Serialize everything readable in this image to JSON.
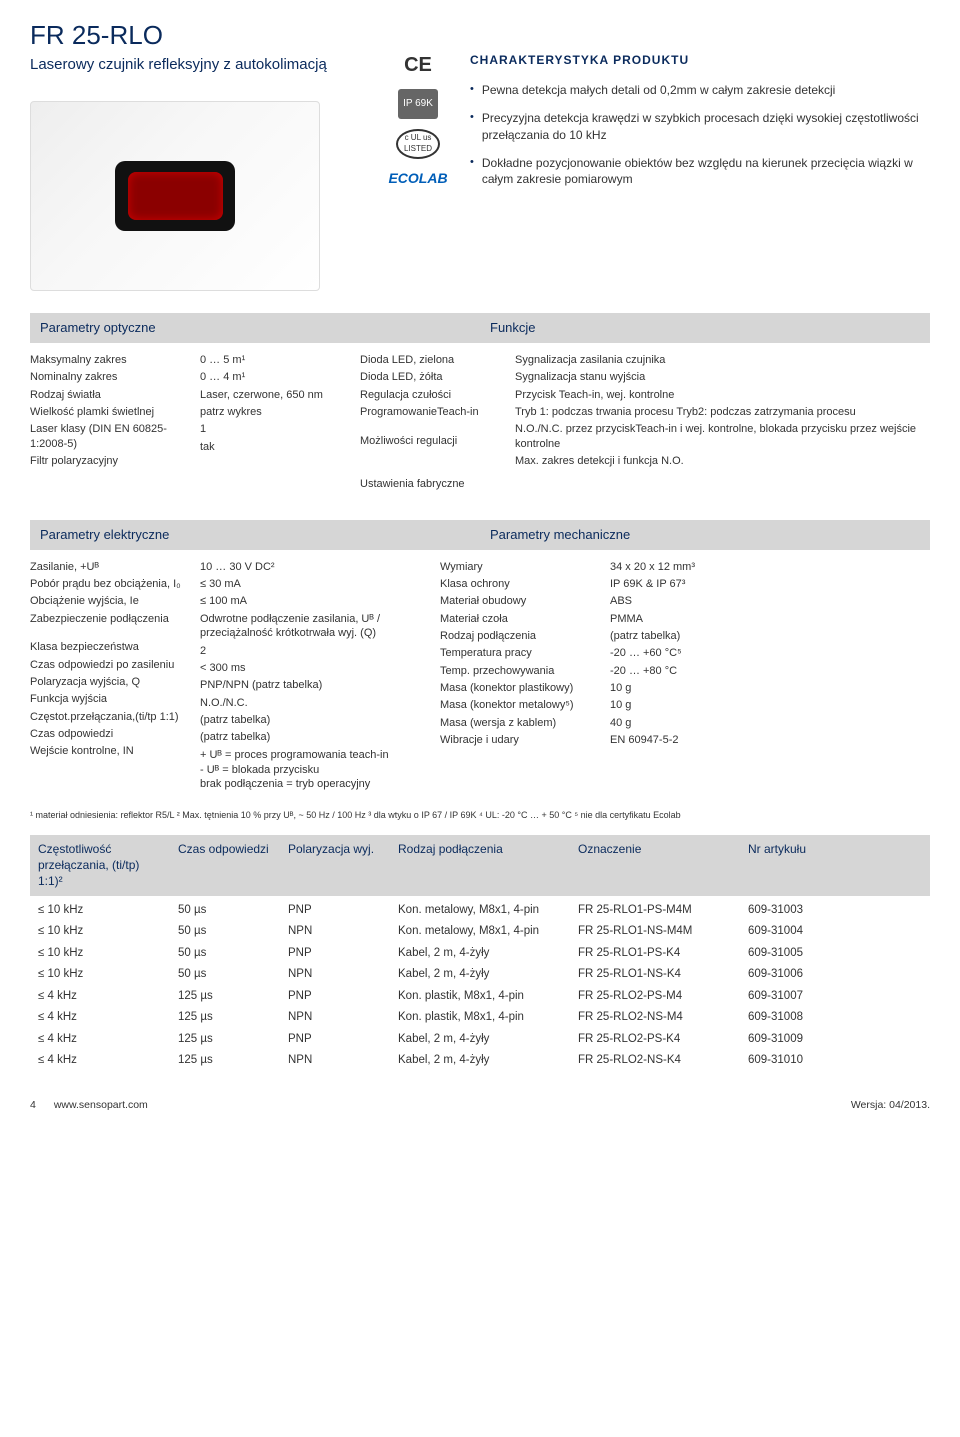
{
  "header": {
    "title": "FR 25-RLO",
    "subtitle": "Laserowy czujnik refleksyjny z autokolimacją"
  },
  "cert": {
    "ce": "CE",
    "ip": "IP 69K",
    "ul_top": "c UL us",
    "ul_bottom": "LISTED",
    "ecolab": "ECOLAB"
  },
  "characteristics": {
    "title": "CHARAKTERYSTYKA PRODUKTU",
    "bullets": [
      "Pewna detekcja małych detali od 0,2mm w całym zakresie detekcji",
      "Precyzyjna detekcja krawędzi w szybkich procesach dzięki wysokiej częstotliwości przełączania do 10 kHz",
      "Dokładne pozycjonowanie obiektów bez względu na kierunek przecięcia wiązki w całym zakresie pomiarowym"
    ]
  },
  "section_headers": {
    "optical": "Parametry optyczne",
    "functions": "Funkcje",
    "electrical": "Parametry elektryczne",
    "mechanical": "Parametry mechaniczne"
  },
  "optical": {
    "labels": [
      "Maksymalny zakres",
      "Nominalny zakres",
      "Rodzaj światła",
      "Wielkość plamki świetlnej",
      "Laser klasy (DIN EN 60825-1:2008-5)",
      "Filtr polaryzacyjny"
    ],
    "values": [
      "0 … 5 m¹",
      "0 … 4 m¹",
      "Laser, czerwone, 650 nm",
      "patrz wykres",
      "1",
      "tak"
    ]
  },
  "functions": {
    "labels": [
      "Dioda LED, zielona",
      "Dioda LED, żółta",
      "Regulacja czułości",
      "ProgramowanieTeach-in",
      "Możliwości regulacji",
      "Ustawienia fabryczne"
    ],
    "values": [
      "Sygnalizacja zasilania czujnika",
      "Sygnalizacja stanu wyjścia",
      "Przycisk Teach-in, wej. kontrolne",
      "Tryb 1: podczas trwania procesu Tryb2: podczas zatrzymania procesu",
      "N.O./N.C. przez przyciskTeach-in i wej. kontrolne, blokada przycisku przez wejście kontrolne",
      "Max. zakres detekcji i funkcja N.O."
    ]
  },
  "electrical": {
    "labels": [
      "Zasilanie, +Uᴮ",
      "Pobór prądu bez obciążenia, I₀",
      "Obciążenie wyjścia, Ie",
      "Zabezpieczenie podłączenia",
      "Klasa bezpieczeństwa",
      "Czas odpowiedzi po zasileniu",
      "Polaryzacja wyjścia, Q",
      "Funkcja wyjścia",
      "Częstot.przełączania,(ti/tp 1:1)",
      "Czas odpowiedzi",
      "Wejście kontrolne, IN"
    ],
    "values": [
      "10 … 30 V DC²",
      "≤ 30 mA",
      "≤ 100 mA",
      "Odwrotne podłączenie zasilania, Uᴮ / przeciążalność krótkotrwała wyj. (Q)",
      "2",
      "< 300 ms",
      "PNP/NPN (patrz tabelka)",
      "N.O./N.C.",
      "(patrz tabelka)",
      "(patrz tabelka)",
      "+ Uᴮ = proces programowania teach-in\n- Uᴮ = blokada przycisku\nbrak podłączenia = tryb operacyjny"
    ]
  },
  "mechanical": {
    "labels": [
      "Wymiary",
      "Klasa ochrony",
      "Materiał obudowy",
      "Materiał czoła",
      "Rodzaj podłączenia",
      "Temperatura pracy",
      "Temp. przechowywania",
      "Masa (konektor plastikowy)",
      "Masa (konektor metalowy⁵)",
      "Masa (wersja z kablem)",
      "Wibracje i udary"
    ],
    "values": [
      "34 x 20 x 12 mm³",
      "IP 69K & IP 67³",
      "ABS",
      "PMMA",
      "(patrz tabelka)",
      "-20 … +60 °C⁵",
      "-20 … +80 °C",
      "10 g",
      "10 g",
      "40 g",
      "EN 60947-5-2"
    ]
  },
  "footnotes": "¹ materiał odniesienia: reflektor R5/L   ² Max. tętnienia 10 % przy Uᴮ, ~ 50 Hz / 100 Hz   ³ dla wtyku o IP 67 / IP 69K   ⁴ UL: -20 °C … + 50 °C   ⁵ nie dla certyfikatu Ecolab",
  "table": {
    "headers": {
      "c1": "Częstotliwość przełączania, (ti/tp) 1:1)²",
      "c2": "Czas odpowiedzi",
      "c3": "Polaryzacja wyj.",
      "c4": "Rodzaj podłączenia",
      "c5": "Oznaczenie",
      "c6": "Nr artykułu"
    },
    "rows": [
      [
        "≤ 10 kHz",
        "50 µs",
        "PNP",
        "Kon. metalowy, M8x1, 4-pin",
        "FR 25-RLO1-PS-M4M",
        "609-31003"
      ],
      [
        "≤ 10 kHz",
        "50 µs",
        "NPN",
        "Kon. metalowy, M8x1, 4-pin",
        "FR 25-RLO1-NS-M4M",
        "609-31004"
      ],
      [
        "≤ 10 kHz",
        "50 µs",
        "PNP",
        "Kabel, 2 m, 4-żyły",
        "FR 25-RLO1-PS-K4",
        "609-31005"
      ],
      [
        "≤ 10 kHz",
        "50 µs",
        "NPN",
        "Kabel, 2 m, 4-żyły",
        "FR 25-RLO1-NS-K4",
        "609-31006"
      ],
      [
        "≤ 4 kHz",
        "125 µs",
        "PNP",
        "Kon. plastik, M8x1, 4-pin",
        "FR 25-RLO2-PS-M4",
        "609-31007"
      ],
      [
        "≤ 4 kHz",
        "125 µs",
        "NPN",
        "Kon. plastik, M8x1, 4-pin",
        "FR 25-RLO2-NS-M4",
        "609-31008"
      ],
      [
        "≤ 4 kHz",
        "125 µs",
        "PNP",
        "Kabel, 2 m, 4-żyły",
        "FR 25-RLO2-PS-K4",
        "609-31009"
      ],
      [
        "≤ 4 kHz",
        "125 µs",
        "NPN",
        "Kabel, 2 m, 4-żyły",
        "FR 25-RLO2-NS-K4",
        "609-31010"
      ]
    ]
  },
  "footer": {
    "page": "4",
    "url": "www.sensopart.com",
    "version": "Wersja: 04/2013."
  },
  "colors": {
    "brand_blue": "#0a2a5c",
    "section_gray": "#d6d6d6",
    "text": "#333333",
    "ecolab_blue": "#005eb8"
  }
}
